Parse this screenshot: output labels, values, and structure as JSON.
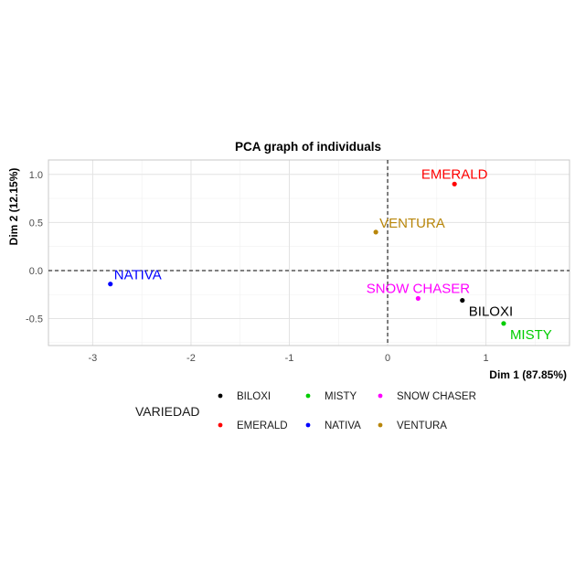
{
  "chart_data": {
    "type": "scatter",
    "title": "PCA graph of individuals",
    "xlabel": "Dim 1 (87.85%)",
    "ylabel": "Dim 2 (12.15%)",
    "xlim": [
      -3.45,
      1.85
    ],
    "ylim": [
      -0.78,
      1.15
    ],
    "xticks": [
      -3,
      -2,
      -1,
      0,
      1
    ],
    "xtick_labels": [
      "-3",
      "-2",
      "-1",
      "0",
      "1"
    ],
    "yticks": [
      -0.5,
      0.0,
      0.5,
      1.0
    ],
    "ytick_labels": [
      "-0.5",
      "0.0",
      "0.5",
      "1.0"
    ],
    "grid": true,
    "reference_lines": {
      "x": 0,
      "y": 0,
      "style": "dashed"
    },
    "points": [
      {
        "name": "BILOXI",
        "x": 0.76,
        "y": -0.31,
        "color": "#000000",
        "label_anchor": "below-right"
      },
      {
        "name": "EMERALD",
        "x": 0.68,
        "y": 0.9,
        "color": "#ff0000",
        "label_anchor": "above"
      },
      {
        "name": "MISTY",
        "x": 1.18,
        "y": -0.55,
        "color": "#00cd00",
        "label_anchor": "below-right"
      },
      {
        "name": "NATIVA",
        "x": -2.82,
        "y": -0.14,
        "color": "#0000ff",
        "label_anchor": "above-right"
      },
      {
        "name": "SNOW CHASER",
        "x": 0.31,
        "y": -0.29,
        "color": "#ff00ff",
        "label_anchor": "above"
      },
      {
        "name": "VENTURA",
        "x": -0.12,
        "y": 0.4,
        "color": "#b8860b",
        "label_anchor": "above-right"
      }
    ],
    "legend": {
      "title": "VARIEDAD",
      "position": "bottom",
      "entries": [
        {
          "label": "BILOXI",
          "color": "#000000"
        },
        {
          "label": "EMERALD",
          "color": "#ff0000"
        },
        {
          "label": "MISTY",
          "color": "#00cd00"
        },
        {
          "label": "NATIVA",
          "color": "#0000ff"
        },
        {
          "label": "SNOW CHASER",
          "color": "#ff00ff"
        },
        {
          "label": "VENTURA",
          "color": "#b8860b"
        }
      ]
    }
  }
}
